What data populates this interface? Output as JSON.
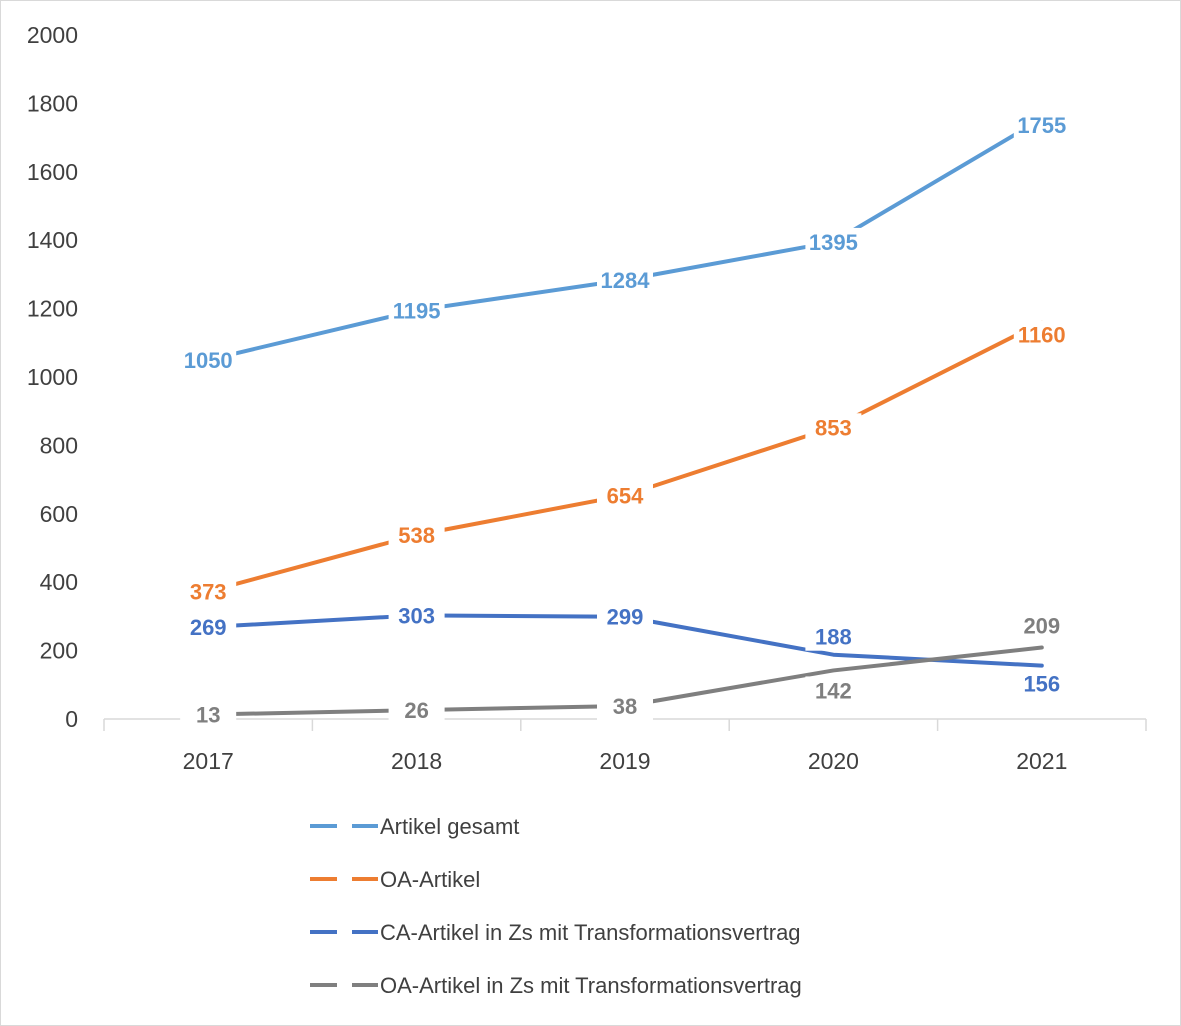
{
  "chart_data": {
    "type": "line",
    "categories": [
      "2017",
      "2018",
      "2019",
      "2020",
      "2021"
    ],
    "ylim": [
      0,
      2000
    ],
    "yticks": [
      0,
      200,
      400,
      600,
      800,
      1000,
      1200,
      1400,
      1600,
      1800,
      2000
    ],
    "grid": false,
    "legend_position": "bottom",
    "series": [
      {
        "name": "Artikel gesamt",
        "values": [
          1050,
          1195,
          1284,
          1395,
          1755
        ],
        "color": "#5b9bd5"
      },
      {
        "name": "OA-Artikel",
        "values": [
          373,
          538,
          654,
          853,
          1160
        ],
        "color": "#ed7d31"
      },
      {
        "name": "CA-Artikel in Zs mit Transformationsvertrag",
        "values": [
          269,
          303,
          299,
          188,
          156
        ],
        "color": "#4472c4"
      },
      {
        "name": "OA-Artikel in Zs mit Transformationsvertrag",
        "values": [
          13,
          26,
          38,
          142,
          209
        ],
        "color": "#7f7f7f"
      }
    ]
  }
}
